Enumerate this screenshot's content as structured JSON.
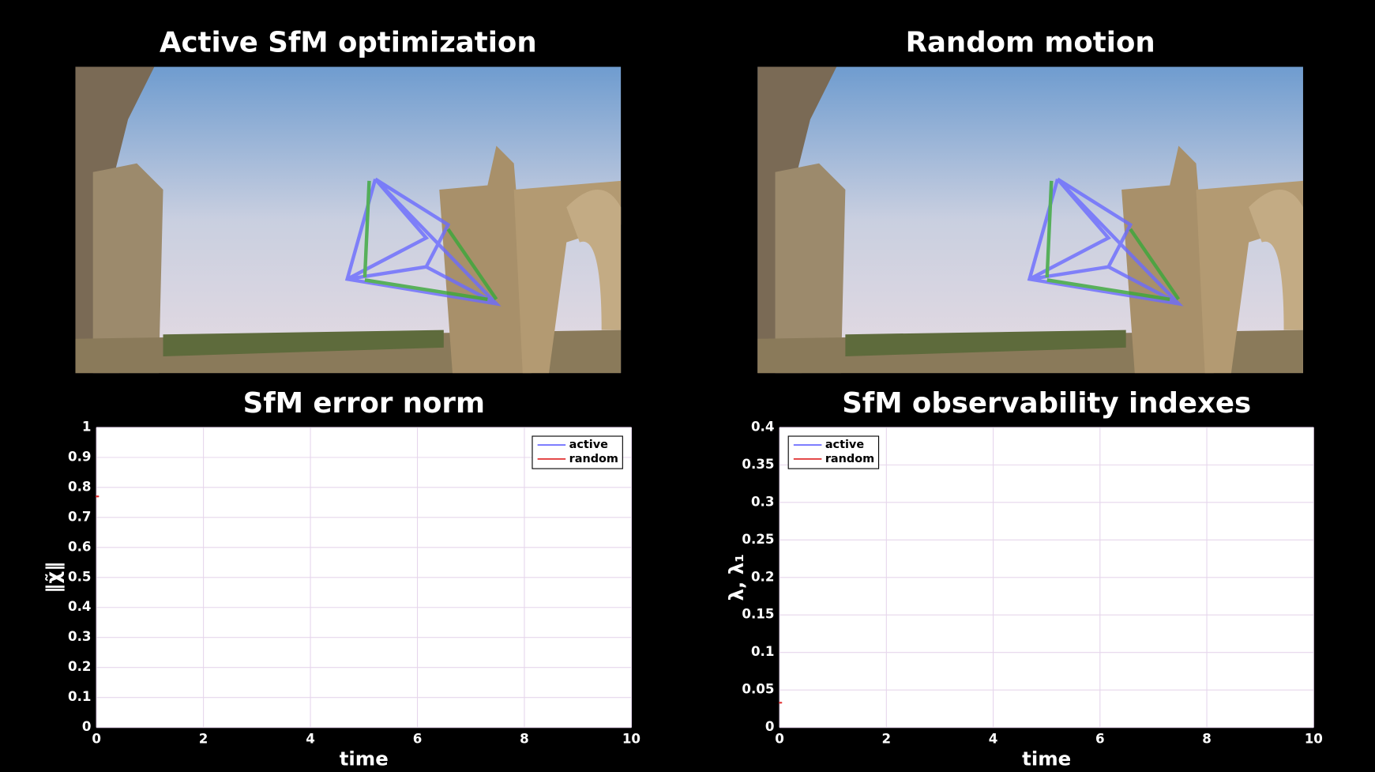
{
  "panels": [
    {
      "title": "Active SfM optimization"
    },
    {
      "title": "Random motion"
    }
  ],
  "chart_data": [
    {
      "type": "line",
      "title": "SfM error norm",
      "x_label": "time",
      "y_label": "‖χ̃‖",
      "x": [
        0
      ],
      "series": [
        {
          "name": "active",
          "color": "#6b6bff",
          "values": [
            null
          ]
        },
        {
          "name": "random",
          "color": "#e03030",
          "values": [
            0.77
          ]
        }
      ],
      "xlim": [
        0,
        10
      ],
      "xticks": [
        0,
        2,
        4,
        6,
        8,
        10
      ],
      "ylim": [
        0,
        1
      ],
      "yticks": [
        0,
        0.1,
        0.2,
        0.3,
        0.4,
        0.5,
        0.6,
        0.7,
        0.8,
        0.9,
        1
      ],
      "grid": true,
      "legend": "upper right"
    },
    {
      "type": "line",
      "title": "SfM observability indexes",
      "x_label": "time",
      "y_label": "λ, λ₁",
      "x": [
        0
      ],
      "series": [
        {
          "name": "active",
          "color": "#6b6bff",
          "values": [
            null
          ]
        },
        {
          "name": "random",
          "color": "#e03030",
          "values": [
            0.033
          ]
        }
      ],
      "xlim": [
        0,
        10
      ],
      "xticks": [
        0,
        2,
        4,
        6,
        8,
        10
      ],
      "ylim": [
        0,
        0.4
      ],
      "yticks": [
        0,
        0.05,
        0.1,
        0.15,
        0.2,
        0.25,
        0.3,
        0.35,
        0.4
      ],
      "grid": true,
      "legend": "upper left"
    }
  ]
}
